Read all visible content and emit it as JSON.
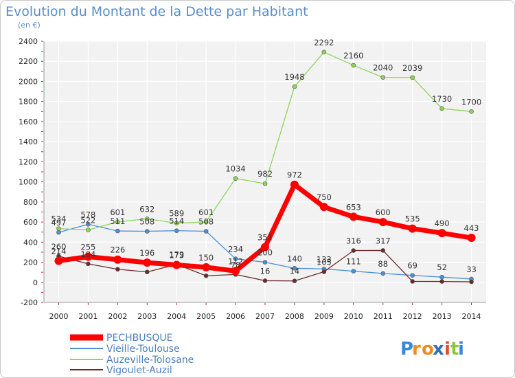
{
  "chart_data": {
    "type": "line",
    "title": "Evolution du Montant de la Dette par Habitant",
    "subtitle": "(en €)",
    "xlabel": "",
    "ylabel": "",
    "x": [
      "2000",
      "2001",
      "2002",
      "2003",
      "2004",
      "2005",
      "2006",
      "2007",
      "2008",
      "2009",
      "2010",
      "2011",
      "2012",
      "2013",
      "2014"
    ],
    "ylim": [
      -200,
      2400
    ],
    "yticks": [
      -200,
      0,
      200,
      400,
      600,
      800,
      1000,
      1200,
      1400,
      1600,
      1800,
      2000,
      2200,
      2400
    ],
    "grid": true,
    "legend_position": "bottom-left",
    "series": [
      {
        "name": "Vieille-Toulouse",
        "color": "#4a90d9",
        "values": [
          497,
          578,
          511,
          508,
          514,
          508,
          234,
          200,
          140,
          133,
          111,
          88,
          69,
          52,
          33
        ]
      },
      {
        "name": "Auzeville-Tolosane",
        "color": "#8ed45a",
        "values": [
          534,
          522,
          601,
          632,
          589,
          601,
          1034,
          982,
          1948,
          2292,
          2160,
          2040,
          2039,
          1730,
          1700
        ]
      },
      {
        "name": "Vigoulet-Auzil",
        "color": "#6e2a2a",
        "values": [
          260,
          184,
          130,
          103,
          179,
          65,
          78,
          16,
          14,
          105,
          316,
          317,
          9,
          8,
          5
        ]
      },
      {
        "name": "PECHBUSQUE",
        "color": "#ff0000",
        "values": [
          214,
          255,
          226,
          196,
          173,
          150,
          112,
          351,
          972,
          750,
          653,
          600,
          535,
          490,
          443
        ]
      }
    ],
    "data_labels": [
      {
        "series": "PECHBUSQUE",
        "labels": [
          "214",
          "255",
          "226",
          "196",
          "173",
          "150",
          "112",
          "351",
          "972",
          "750",
          "653",
          "600",
          "535",
          "490",
          "443"
        ]
      },
      {
        "series": "Vieille-Toulouse",
        "labels": [
          "497",
          "578",
          "511",
          "508",
          "514",
          "508",
          "234",
          "200",
          "140",
          "133",
          "111",
          "88",
          "69",
          "52",
          "33"
        ]
      },
      {
        "series": "Auzeville-Tolosane",
        "labels": [
          "534",
          "522",
          "601",
          "632",
          "589",
          "601",
          "1034",
          "982",
          "1948",
          "2292",
          "2160",
          "2040",
          "2039",
          "1730",
          "1700"
        ]
      },
      {
        "series": "Vigoulet-Auzil",
        "labels": [
          "260",
          "184",
          "",
          "",
          "179",
          "",
          "78",
          "16",
          "14",
          "105",
          "316",
          "317",
          "",
          "",
          ""
        ]
      }
    ]
  },
  "legend": {
    "items": [
      "PECHBUSQUE",
      "Vieille-Toulouse",
      "Auzeville-Tolosane",
      "Vigoulet-Auzil"
    ]
  },
  "brand": {
    "letters": [
      "P",
      "r",
      "o",
      "x",
      "i",
      "t",
      "i"
    ],
    "colors": [
      "#3a86d8",
      "#f08a24",
      "#f08a24",
      "#2e6db8",
      "#e84a2e",
      "#8cc63f",
      "#3a86d8"
    ]
  }
}
